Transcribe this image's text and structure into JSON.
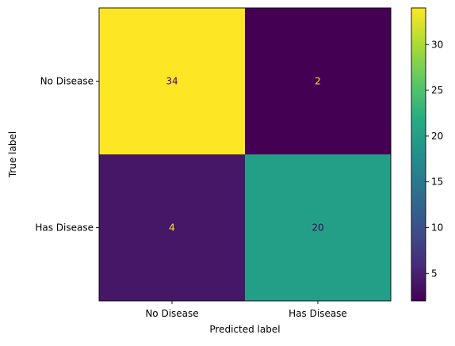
{
  "chart_data": {
    "type": "heatmap",
    "x_categories": [
      "No Disease",
      "Has Disease"
    ],
    "y_categories": [
      "No Disease",
      "Has Disease"
    ],
    "values": [
      [
        34,
        2
      ],
      [
        4,
        20
      ]
    ],
    "xlabel": "Predicted label",
    "ylabel": "True label",
    "colormap": "viridis",
    "color_range": [
      2,
      34
    ],
    "colorbar_ticks": [
      5,
      10,
      15,
      20,
      25,
      30
    ],
    "colors": {
      "low": "#440154",
      "high": "#fde725",
      "text_on_dark": "#fde725",
      "text_on_light": "#440154"
    }
  }
}
